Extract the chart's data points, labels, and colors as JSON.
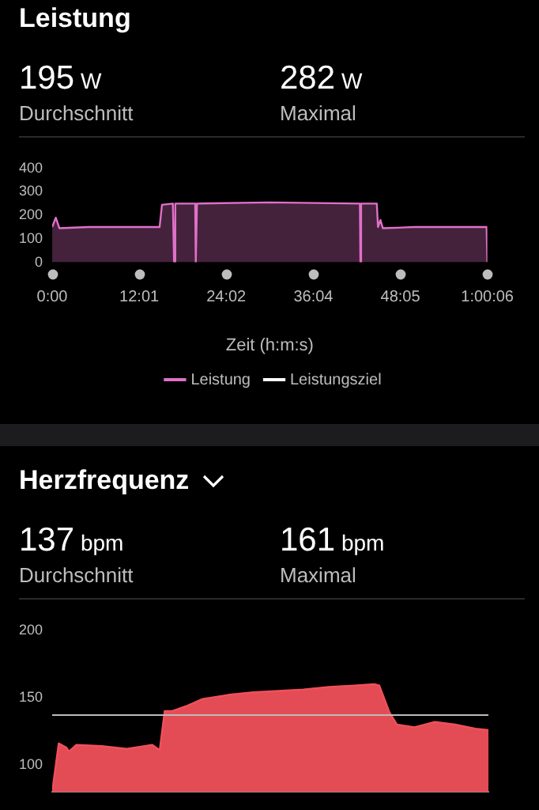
{
  "chart_data": [
    {
      "type": "area",
      "title": "Leistung",
      "annotations": [
        "195 W",
        "Durchschnitt",
        "282 W",
        "Maximal"
      ],
      "xlabel": "Zeit (h:m:s)",
      "legend": "bottom",
      "grid": false,
      "marker": "none",
      "xlim": [
        0,
        3606
      ],
      "xticks": [
        {
          "value": 0,
          "label": "0:00"
        },
        {
          "value": 721,
          "label": "12:01"
        },
        {
          "value": 1442,
          "label": "24:02"
        },
        {
          "value": 2164,
          "label": "36:04"
        },
        {
          "value": 2885,
          "label": "48:05"
        },
        {
          "value": 3606,
          "label": "1:00:06"
        }
      ],
      "ylim": [
        0,
        400
      ],
      "yticks": [
        0,
        100,
        200,
        300,
        400
      ],
      "series": [
        {
          "name": "Leistung",
          "color": "#e070c8",
          "x": [
            0,
            30,
            60,
            300,
            600,
            890,
            910,
            1000,
            1010,
            1020,
            1185,
            1190,
            1200,
            1800,
            2550,
            2554,
            2560,
            2690,
            2700,
            2720,
            2740,
            3000,
            3600,
            3606
          ],
          "values": [
            150,
            190,
            145,
            150,
            150,
            150,
            245,
            250,
            0,
            250,
            250,
            0,
            250,
            255,
            250,
            0,
            250,
            250,
            150,
            180,
            145,
            150,
            150,
            0
          ]
        },
        {
          "name": "Leistungsziel",
          "color": "#ffffff"
        }
      ]
    },
    {
      "type": "area",
      "title": "Herzfrequenz",
      "annotations": [
        "137 bpm",
        "Durchschnitt",
        "161 bpm",
        "Maximal"
      ],
      "grid": false,
      "marker": "none",
      "tick_labels": "y",
      "xlim": [
        0,
        3606
      ],
      "ylim": [
        80,
        200
      ],
      "yticks": [
        100,
        150,
        200
      ],
      "ref_lines": [
        {
          "axis": "y",
          "value": 137,
          "color": "#bbbbbb"
        }
      ],
      "series": [
        {
          "color": "#f0505a",
          "x": [
            0,
            54,
            117,
            138,
            200,
            409,
            617,
            826,
            889,
            930,
            993,
            1118,
            1244,
            1452,
            1661,
            1870,
            2078,
            2287,
            2496,
            2663,
            2704,
            2788,
            2850,
            2996,
            3163,
            3330,
            3497,
            3606
          ],
          "values": [
            80,
            116,
            113,
            110,
            115,
            114,
            112,
            115,
            111,
            140,
            140,
            144,
            149,
            152,
            154,
            155,
            156,
            158,
            159,
            160,
            159,
            139,
            130,
            128,
            132,
            130,
            127,
            126
          ]
        }
      ]
    }
  ]
}
